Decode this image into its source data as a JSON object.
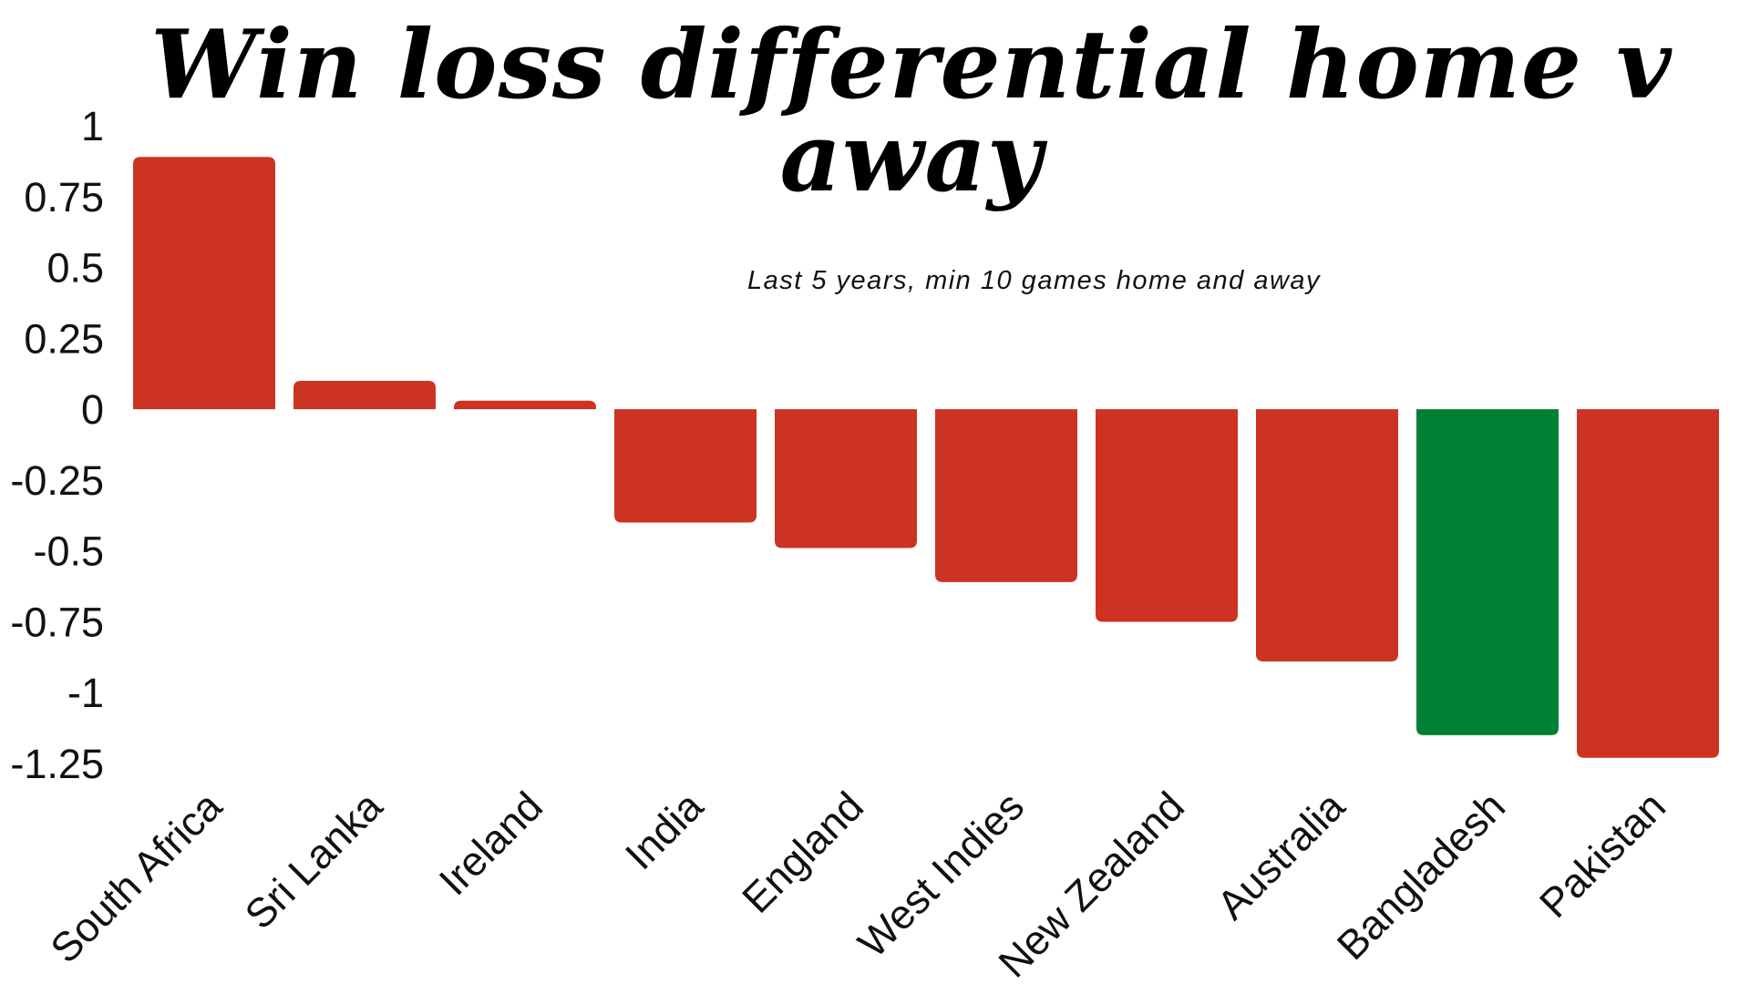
{
  "chart_data": {
    "type": "bar",
    "title": "Win loss differential home v away",
    "subtitle": "Last 5 years, min 10 games home and away",
    "categories": [
      "South Africa",
      "Sri Lanka",
      "Ireland",
      "India",
      "England",
      "West Indies",
      "New Zealand",
      "Australia",
      "Bangladesh",
      "Pakistan"
    ],
    "values": [
      0.89,
      0.1,
      0.03,
      -0.4,
      -0.49,
      -0.61,
      -0.75,
      -0.89,
      -1.15,
      -1.23
    ],
    "bar_colors": [
      "#cc3322",
      "#cc3322",
      "#cc3322",
      "#cc3322",
      "#cc3322",
      "#cc3322",
      "#cc3322",
      "#cc3322",
      "#008035",
      "#cc3322"
    ],
    "yticks": [
      1,
      0.75,
      0.5,
      0.25,
      0,
      -0.25,
      -0.5,
      -0.75,
      -1,
      -1.25
    ],
    "ylim": [
      -1.25,
      1
    ],
    "xlabel": "",
    "ylabel": "",
    "grid": false,
    "legend": "none"
  }
}
